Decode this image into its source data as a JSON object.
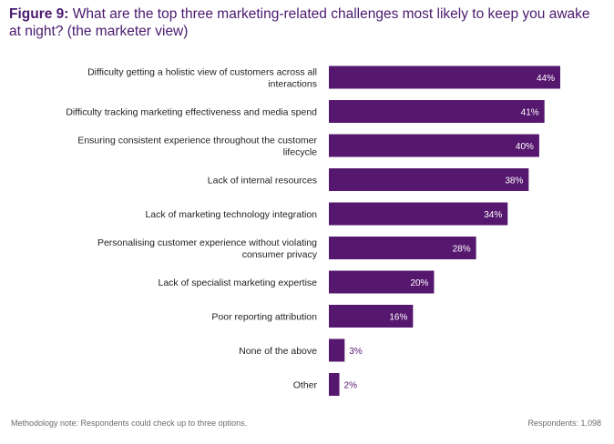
{
  "title": {
    "prefix": "Figure 9:",
    "text": "What are the top three marketing-related challenges most likely to keep you awake at night? (the marketer view)"
  },
  "colors": {
    "bar": "#56176f",
    "title": "#4a1a6e",
    "label_inside": "#ffffff",
    "label_outside": "#56176f"
  },
  "chart_data": {
    "type": "bar",
    "orientation": "horizontal",
    "categories": [
      [
        "Difficulty getting a holistic view of customers across all",
        "interactions"
      ],
      [
        "Difficulty tracking marketing effectiveness and media spend"
      ],
      [
        "Ensuring consistent experience throughout the customer",
        "lifecycle"
      ],
      [
        "Lack of internal resources"
      ],
      [
        "Lack of marketing technology integration"
      ],
      [
        "Personalising customer experience without violating",
        "consumer privacy"
      ],
      [
        "Lack of specialist marketing expertise"
      ],
      [
        "Poor reporting attribution"
      ],
      [
        "None of the above"
      ],
      [
        "Other"
      ]
    ],
    "values": [
      44,
      41,
      40,
      38,
      34,
      28,
      20,
      16,
      3,
      2
    ],
    "value_suffix": "%",
    "xlim": [
      0,
      44
    ],
    "grid": false,
    "legend": "none"
  },
  "footer": {
    "note": "Methodology note: Respondents could check up to three options.",
    "respondents": "Respondents: 1,098"
  }
}
